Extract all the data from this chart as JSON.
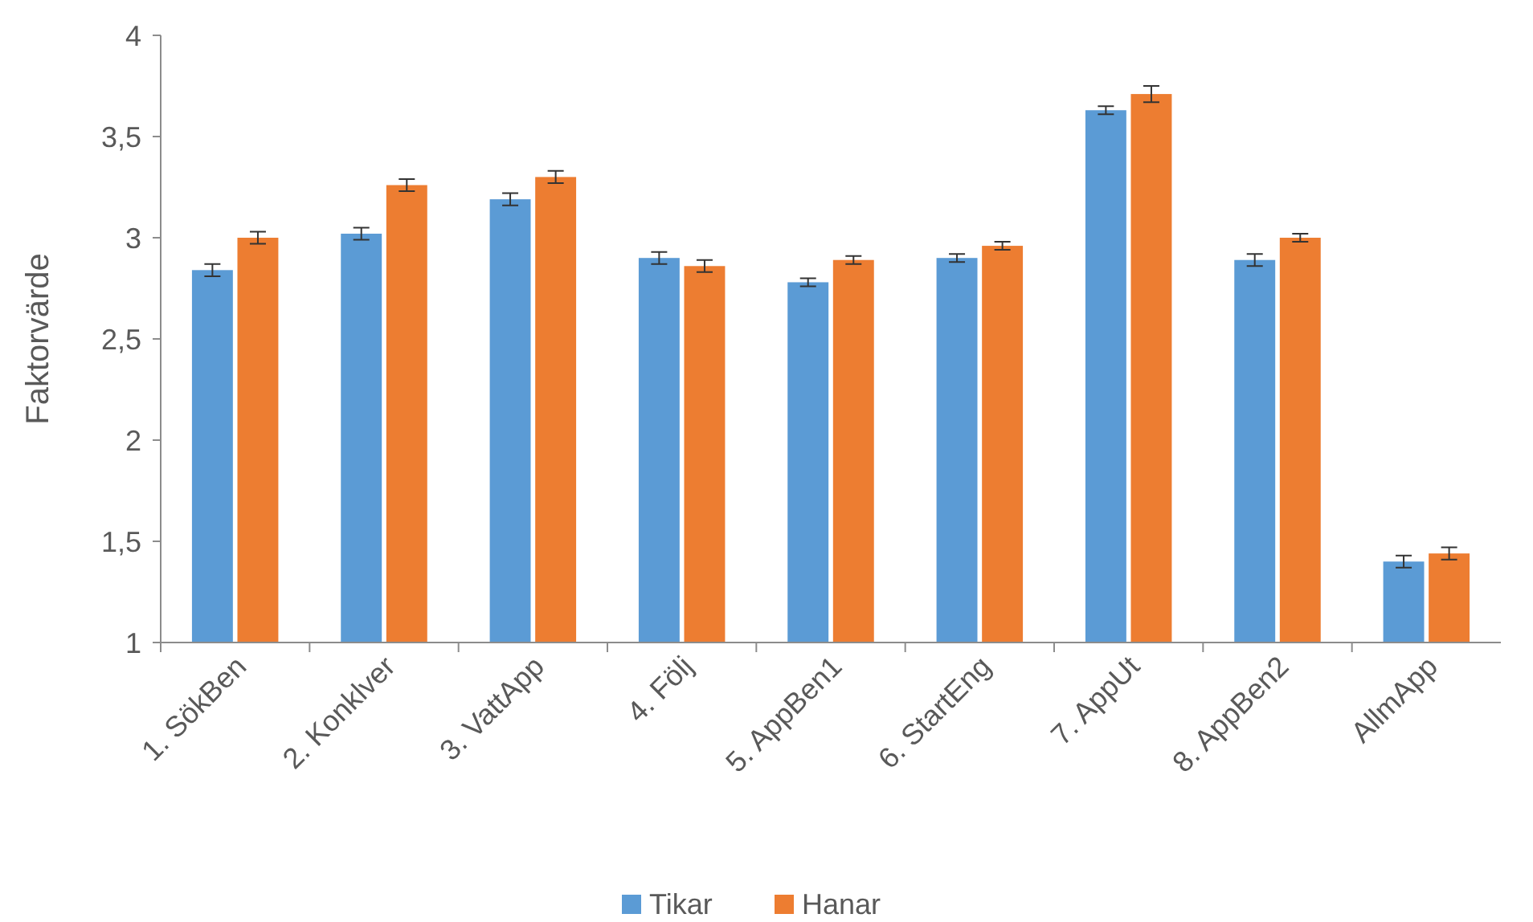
{
  "chart_data": {
    "type": "bar",
    "ylabel": "Faktorvärde",
    "categories": [
      "1. SökBen",
      "2. Konklver",
      "3. VattApp",
      "4. Följ",
      "5. AppBen1",
      "6. StartEng",
      "7. AppUt",
      "8. AppBen2",
      "AllmApp"
    ],
    "series": [
      {
        "name": "Tikar",
        "color": "#5b9bd5",
        "values": [
          2.84,
          3.02,
          3.19,
          2.9,
          2.78,
          2.9,
          3.63,
          2.89,
          1.4
        ],
        "errors": [
          0.03,
          0.03,
          0.03,
          0.03,
          0.02,
          0.02,
          0.02,
          0.03,
          0.03
        ]
      },
      {
        "name": "Hanar",
        "color": "#ed7d31",
        "values": [
          3.0,
          3.26,
          3.3,
          2.86,
          2.89,
          2.96,
          3.71,
          3.0,
          1.44
        ],
        "errors": [
          0.03,
          0.03,
          0.03,
          0.03,
          0.02,
          0.02,
          0.04,
          0.02,
          0.03
        ]
      }
    ],
    "ylim": [
      1,
      4
    ],
    "yticks": [
      1,
      {
        "value": 1.5,
        "label": "1,5"
      },
      2,
      {
        "value": 2.5,
        "label": "2,5"
      },
      3,
      {
        "value": 3.5,
        "label": "3,5"
      },
      4
    ],
    "legend": "bottom",
    "grid": false
  }
}
